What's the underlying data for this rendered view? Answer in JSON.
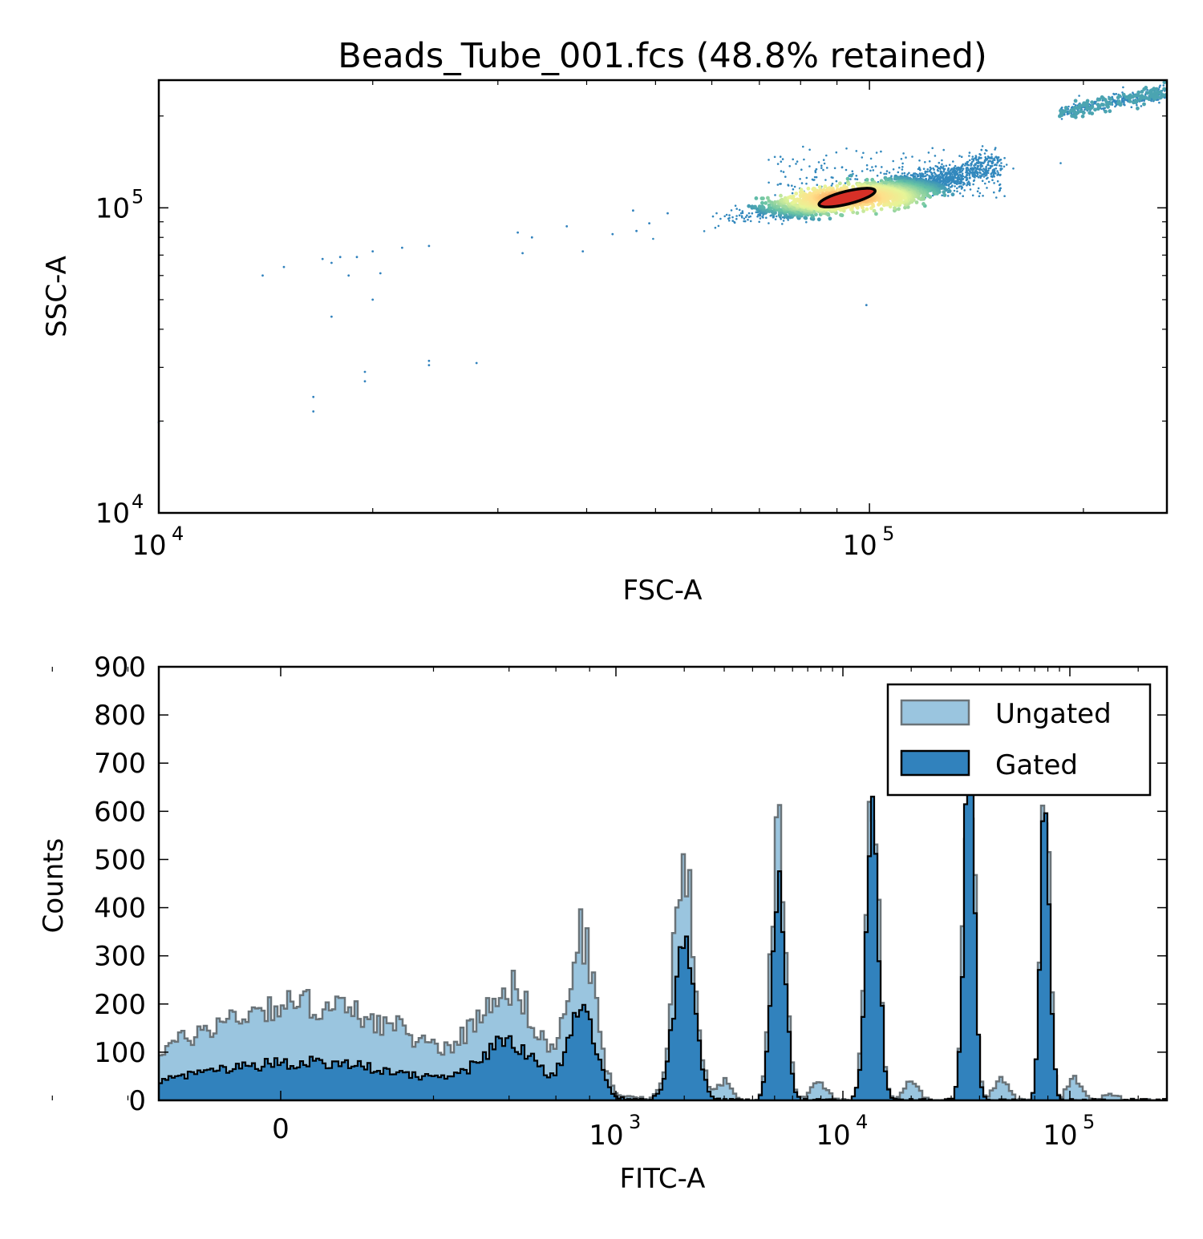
{
  "chart_data": [
    {
      "type": "scatter",
      "title": "Beads_Tube_001.fcs (48.8% retained)",
      "xlabel": "FSC-A",
      "ylabel": "SSC-A",
      "xscale": "log",
      "yscale": "log",
      "xlim": [
        10000,
        262144
      ],
      "ylim": [
        10000,
        262144
      ],
      "xticks": [
        {
          "base": "10",
          "exp": "4",
          "value": 10000
        },
        {
          "base": "10",
          "exp": "5",
          "value": 100000
        }
      ],
      "yticks": [
        {
          "base": "10",
          "exp": "4",
          "value": 10000
        },
        {
          "base": "10",
          "exp": "5",
          "value": 100000
        }
      ],
      "colormap": "density (blue → yellow → red)",
      "gate": {
        "shape": "ellipse",
        "center": [
          93000,
          108000
        ],
        "edge_color": "#000000",
        "fill_color": "#d73027"
      },
      "clusters": [
        {
          "name": "main",
          "x_range": [
            68000,
            150000
          ],
          "y_range": [
            82000,
            145000
          ]
        },
        {
          "name": "upper-right",
          "x_range": [
            185000,
            262144
          ],
          "y_range": [
            200000,
            240000
          ]
        }
      ],
      "outliers": [
        [
          14000,
          60000
        ],
        [
          15000,
          64000
        ],
        [
          17000,
          68000
        ],
        [
          17500,
          66000
        ],
        [
          18000,
          69000
        ],
        [
          19000,
          69000
        ],
        [
          20000,
          72000
        ],
        [
          18500,
          60000
        ],
        [
          20500,
          61000
        ],
        [
          20000,
          50000
        ],
        [
          17500,
          44000
        ],
        [
          22000,
          74000
        ],
        [
          24000,
          75000
        ],
        [
          32000,
          83000
        ],
        [
          33500,
          80000
        ],
        [
          32500,
          71000
        ],
        [
          37500,
          87000
        ],
        [
          39500,
          72000
        ],
        [
          43500,
          82000
        ],
        [
          46500,
          98000
        ],
        [
          47000,
          84000
        ],
        [
          49000,
          89000
        ],
        [
          52000,
          96000
        ],
        [
          24000,
          31500
        ],
        [
          24000,
          30500
        ],
        [
          28000,
          31000
        ],
        [
          19500,
          29000
        ],
        [
          19500,
          27000
        ],
        [
          16500,
          24000
        ],
        [
          16500,
          21500
        ],
        [
          10000,
          19800
        ],
        [
          99000,
          48000
        ]
      ]
    },
    {
      "type": "histogram",
      "xlabel": "FITC-A",
      "ylabel": "Counts",
      "xscale": "logicle",
      "ylim": [
        0,
        900
      ],
      "yticks": [
        0,
        100,
        200,
        300,
        400,
        500,
        600,
        700,
        800,
        900
      ],
      "xticks": [
        {
          "label": "0",
          "value": 0
        },
        {
          "base": "10",
          "exp": "3",
          "value": 1000
        },
        {
          "base": "10",
          "exp": "4",
          "value": 10000
        },
        {
          "base": "10",
          "exp": "5",
          "value": 100000
        }
      ],
      "legend_position": "top-right",
      "series": [
        {
          "name": "Ungated",
          "color": "#9ac5df",
          "edge": "#6a7378",
          "peaks": [
            {
              "center": 20,
              "height": 200,
              "width": 160
            },
            {
              "center": 400,
              "height": 190,
              "width": 110
            },
            {
              "center": 750,
              "height": 320,
              "width": 90
            },
            {
              "center": 2000,
              "height": 505,
              "width": 0.045
            },
            {
              "center": 5200,
              "height": 590,
              "width": 0.03
            },
            {
              "center": 13500,
              "height": 640,
              "width": 0.028
            },
            {
              "center": 36000,
              "height": 830,
              "width": 0.022
            },
            {
              "center": 78000,
              "height": 690,
              "width": 0.02
            }
          ],
          "minor_peaks": [
            {
              "center": 3000,
              "height": 38
            },
            {
              "center": 7800,
              "height": 45
            },
            {
              "center": 20000,
              "height": 40
            },
            {
              "center": 50000,
              "height": 45
            },
            {
              "center": 105000,
              "height": 45
            },
            {
              "center": 150000,
              "height": 12
            }
          ]
        },
        {
          "name": "Gated",
          "color": "#3182bd",
          "edge": "#000000",
          "peaks": [
            {
              "center": 20,
              "height": 78,
              "width": 160
            },
            {
              "center": 400,
              "height": 102,
              "width": 110
            },
            {
              "center": 750,
              "height": 185,
              "width": 90
            },
            {
              "center": 2000,
              "height": 340,
              "width": 0.045
            },
            {
              "center": 5200,
              "height": 470,
              "width": 0.03
            },
            {
              "center": 13500,
              "height": 555,
              "width": 0.028
            },
            {
              "center": 36000,
              "height": 750,
              "width": 0.022
            },
            {
              "center": 78000,
              "height": 640,
              "width": 0.02
            }
          ]
        }
      ],
      "legend": [
        {
          "label": "Ungated",
          "color": "#9ac5df",
          "edge": "#6a7378"
        },
        {
          "label": "Gated",
          "color": "#3182bd",
          "edge": "#000000"
        }
      ]
    }
  ]
}
